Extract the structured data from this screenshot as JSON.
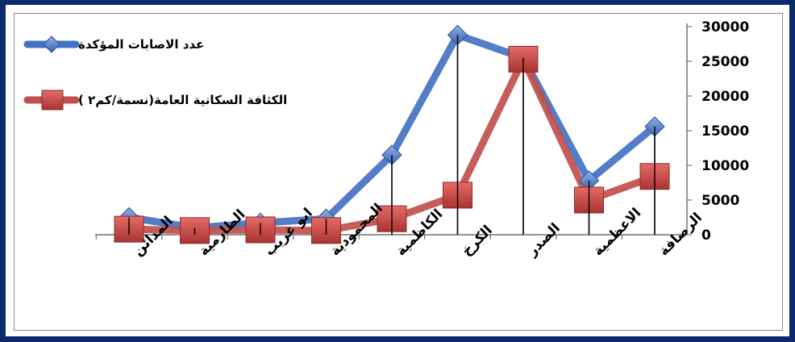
{
  "chart_data": {
    "type": "line",
    "categories": [
      "المدائن",
      "الطارمية",
      "ابو غريب",
      "المحمودية",
      "الكاظمية",
      "الكرخ",
      "الصدر",
      "الاعظمية",
      "الرصافة"
    ],
    "series": [
      {
        "name": "عدد الاصابات المؤكدة",
        "values": [
          2500,
          1000,
          1700,
          2300,
          11500,
          28800,
          25500,
          7800,
          15600
        ],
        "color": "#4472c4",
        "marker": "diamond"
      },
      {
        "name": "الكثافة السكانية العامة(نسمة/كم٢ )",
        "values": [
          800,
          600,
          700,
          600,
          2300,
          5700,
          25300,
          5000,
          8400
        ],
        "color": "#c0504d",
        "marker": "square"
      }
    ],
    "y_ticks": [
      "30000",
      "25000",
      "20000",
      "15000",
      "10000",
      "5000",
      "0"
    ],
    "ylim": [
      0,
      30000
    ],
    "grid": false,
    "legend_position": "top-left",
    "colors": {
      "frame": "#0b2a74",
      "background": "#ffffff"
    }
  }
}
